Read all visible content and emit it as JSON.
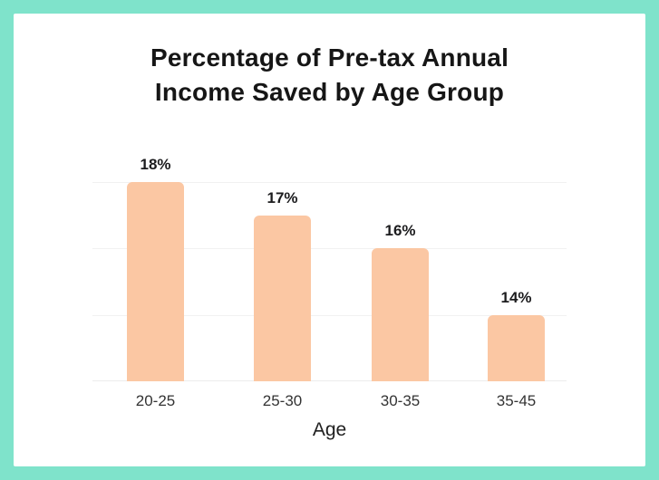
{
  "page": {
    "background_color": "#7FE3CB",
    "card_color": "#FFFFFF"
  },
  "chart_data": {
    "type": "bar",
    "title": "Percentage of Pre-tax Annual Income Saved by Age Group",
    "categories": [
      "20-25",
      "25-30",
      "30-35",
      "35-45"
    ],
    "values": [
      18,
      17,
      16,
      14
    ],
    "value_labels": [
      "18%",
      "17%",
      "16%",
      "14%"
    ],
    "xlabel": "Age",
    "ylim": [
      12,
      18
    ],
    "gridline_values": [
      18,
      16,
      14,
      12
    ],
    "grid": true,
    "legend": false,
    "bar_color": "#FBC7A3",
    "gridline_color": "#F1F1F1",
    "value_label_color": "#1C1C1E",
    "category_label_color": "#333333",
    "title_color": "#161616"
  }
}
